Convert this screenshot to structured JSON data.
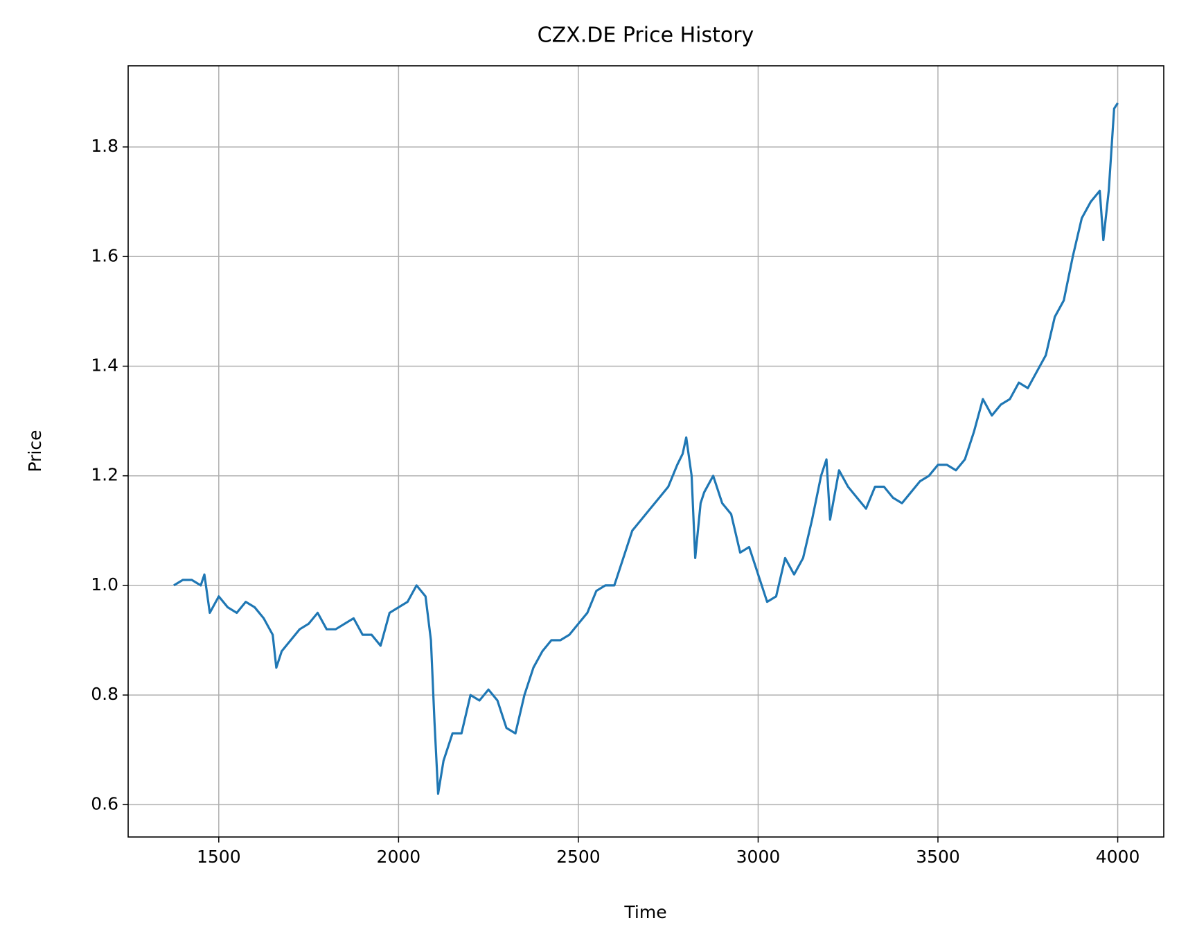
{
  "chart_data": {
    "type": "line",
    "title": "CZX.DE Price History",
    "x_label": "Time",
    "y_label": "Price",
    "x": [
      1375,
      1400,
      1425,
      1450,
      1460,
      1475,
      1500,
      1525,
      1550,
      1575,
      1600,
      1625,
      1650,
      1660,
      1675,
      1700,
      1725,
      1750,
      1775,
      1800,
      1825,
      1850,
      1875,
      1900,
      1925,
      1950,
      1975,
      2000,
      2025,
      2050,
      2075,
      2090,
      2100,
      2110,
      2125,
      2150,
      2175,
      2200,
      2225,
      2250,
      2275,
      2300,
      2325,
      2350,
      2375,
      2400,
      2425,
      2450,
      2475,
      2500,
      2525,
      2550,
      2575,
      2600,
      2625,
      2650,
      2675,
      2700,
      2725,
      2750,
      2775,
      2790,
      2800,
      2815,
      2825,
      2840,
      2850,
      2875,
      2900,
      2925,
      2950,
      2975,
      3000,
      3025,
      3050,
      3075,
      3100,
      3125,
      3150,
      3175,
      3190,
      3200,
      3225,
      3250,
      3275,
      3300,
      3325,
      3350,
      3375,
      3400,
      3425,
      3450,
      3475,
      3500,
      3525,
      3550,
      3575,
      3600,
      3625,
      3650,
      3675,
      3700,
      3725,
      3750,
      3775,
      3800,
      3825,
      3850,
      3875,
      3900,
      3925,
      3950,
      3960,
      3975,
      3990,
      4000
    ],
    "series": [
      {
        "name": "Price",
        "color": "#1f77b4",
        "values": [
          1.0,
          1.01,
          1.01,
          1.0,
          1.02,
          0.95,
          0.98,
          0.96,
          0.95,
          0.97,
          0.96,
          0.94,
          0.91,
          0.85,
          0.88,
          0.9,
          0.92,
          0.93,
          0.95,
          0.92,
          0.92,
          0.93,
          0.94,
          0.91,
          0.91,
          0.89,
          0.95,
          0.96,
          0.97,
          1.0,
          0.98,
          0.9,
          0.75,
          0.62,
          0.68,
          0.73,
          0.73,
          0.8,
          0.79,
          0.81,
          0.79,
          0.74,
          0.73,
          0.8,
          0.85,
          0.88,
          0.9,
          0.9,
          0.91,
          0.93,
          0.95,
          0.99,
          1.0,
          1.0,
          1.05,
          1.1,
          1.12,
          1.14,
          1.16,
          1.18,
          1.22,
          1.24,
          1.27,
          1.2,
          1.05,
          1.15,
          1.17,
          1.2,
          1.15,
          1.13,
          1.06,
          1.07,
          1.02,
          0.97,
          0.98,
          1.05,
          1.02,
          1.05,
          1.12,
          1.2,
          1.23,
          1.12,
          1.21,
          1.18,
          1.16,
          1.14,
          1.18,
          1.18,
          1.16,
          1.15,
          1.17,
          1.19,
          1.2,
          1.22,
          1.22,
          1.21,
          1.23,
          1.28,
          1.34,
          1.31,
          1.33,
          1.34,
          1.37,
          1.36,
          1.39,
          1.42,
          1.49,
          1.52,
          1.6,
          1.67,
          1.7,
          1.72,
          1.63,
          1.72,
          1.87,
          1.88
        ]
      }
    ],
    "xlim": [
      1248,
      4128
    ],
    "ylim": [
      0.541,
      1.948
    ],
    "xticks": [
      1500,
      2000,
      2500,
      3000,
      3500,
      4000
    ],
    "yticks": [
      {
        "value": 0.6,
        "label": "0.6"
      },
      {
        "value": 0.8,
        "label": "0.8"
      },
      {
        "value": 1.0,
        "label": "1.0"
      },
      {
        "value": 1.2,
        "label": "1.2"
      },
      {
        "value": 1.4,
        "label": "1.4"
      },
      {
        "value": 1.6,
        "label": "1.6"
      },
      {
        "value": 1.8,
        "label": "1.8"
      }
    ],
    "grid": true
  }
}
